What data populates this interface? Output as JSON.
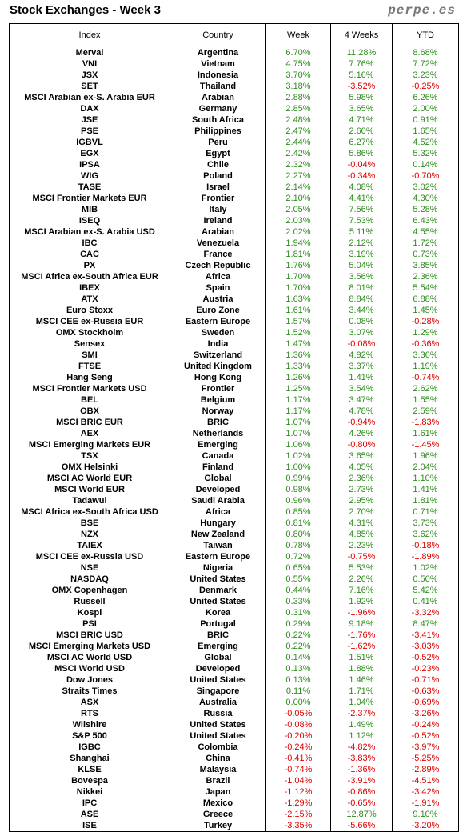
{
  "header": {
    "title": "Stock Exchanges - Week 3",
    "site": "perpe.es"
  },
  "table": {
    "columns": [
      "Index",
      "Country",
      "Week",
      "4 Weeks",
      "YTD"
    ],
    "rows": [
      [
        "Merval",
        "Argentina",
        "6.70%",
        "11.28%",
        "8.68%"
      ],
      [
        "VNI",
        "Vietnam",
        "4.75%",
        "7.76%",
        "7.72%"
      ],
      [
        "JSX",
        "Indonesia",
        "3.70%",
        "5.16%",
        "3.23%"
      ],
      [
        "SET",
        "Thailand",
        "3.18%",
        "-3.52%",
        "-0.25%"
      ],
      [
        "MSCI Arabian ex-S. Arabia EUR",
        "Arabian",
        "2.88%",
        "5.98%",
        "6.26%"
      ],
      [
        "DAX",
        "Germany",
        "2.85%",
        "3.65%",
        "2.00%"
      ],
      [
        "JSE",
        "South Africa",
        "2.48%",
        "4.71%",
        "0.91%"
      ],
      [
        "PSE",
        "Philippines",
        "2.47%",
        "2.60%",
        "1.65%"
      ],
      [
        "IGBVL",
        "Peru",
        "2.44%",
        "6.27%",
        "4.52%"
      ],
      [
        "EGX",
        "Egypt",
        "2.42%",
        "5.86%",
        "5.32%"
      ],
      [
        "IPSA",
        "Chile",
        "2.32%",
        "-0.04%",
        "0.14%"
      ],
      [
        "WIG",
        "Poland",
        "2.27%",
        "-0.34%",
        "-0.70%"
      ],
      [
        "TASE",
        "Israel",
        "2.14%",
        "4.08%",
        "3.02%"
      ],
      [
        "MSCI Frontier Markets EUR",
        "Frontier",
        "2.10%",
        "4.41%",
        "4.30%"
      ],
      [
        "MIB",
        "Italy",
        "2.05%",
        "7.56%",
        "5.28%"
      ],
      [
        "ISEQ",
        "Ireland",
        "2.03%",
        "7.53%",
        "6.43%"
      ],
      [
        "MSCI Arabian ex-S. Arabia USD",
        "Arabian",
        "2.02%",
        "5.11%",
        "4.55%"
      ],
      [
        "IBC",
        "Venezuela",
        "1.94%",
        "2.12%",
        "1.72%"
      ],
      [
        "CAC",
        "France",
        "1.81%",
        "3.19%",
        "0.73%"
      ],
      [
        "PX",
        "Czech Republic",
        "1.76%",
        "5.04%",
        "3.85%"
      ],
      [
        "MSCI Africa ex-South Africa EUR",
        "Africa",
        "1.70%",
        "3.56%",
        "2.36%"
      ],
      [
        "IBEX",
        "Spain",
        "1.70%",
        "8.01%",
        "5.54%"
      ],
      [
        "ATX",
        "Austria",
        "1.63%",
        "8.84%",
        "6.88%"
      ],
      [
        "Euro Stoxx",
        "Euro Zone",
        "1.61%",
        "3.44%",
        "1.45%"
      ],
      [
        "MSCI CEE ex-Russia EUR",
        "Eastern Europe",
        "1.57%",
        "0.08%",
        "-0.28%"
      ],
      [
        "OMX Stockholm",
        "Sweden",
        "1.52%",
        "3.07%",
        "1.29%"
      ],
      [
        "Sensex",
        "India",
        "1.47%",
        "-0.08%",
        "-0.36%"
      ],
      [
        "SMI",
        "Switzerland",
        "1.36%",
        "4.92%",
        "3.36%"
      ],
      [
        "FTSE",
        "United Kingdom",
        "1.33%",
        "3.37%",
        "1.19%"
      ],
      [
        "Hang Seng",
        "Hong Kong",
        "1.26%",
        "1.41%",
        "-0.74%"
      ],
      [
        "MSCI Frontier Markets USD",
        "Frontier",
        "1.25%",
        "3.54%",
        "2.62%"
      ],
      [
        "BEL",
        "Belgium",
        "1.17%",
        "3.47%",
        "1.55%"
      ],
      [
        "OBX",
        "Norway",
        "1.17%",
        "4.78%",
        "2.59%"
      ],
      [
        "MSCI BRIC EUR",
        "BRIC",
        "1.07%",
        "-0.94%",
        "-1.83%"
      ],
      [
        "AEX",
        "Netherlands",
        "1.07%",
        "4.26%",
        "1.61%"
      ],
      [
        "MSCI Emerging Markets EUR",
        "Emerging",
        "1.06%",
        "-0.80%",
        "-1.45%"
      ],
      [
        "TSX",
        "Canada",
        "1.02%",
        "3.65%",
        "1.96%"
      ],
      [
        "OMX Helsinki",
        "Finland",
        "1.00%",
        "4.05%",
        "2.04%"
      ],
      [
        "MSCI AC World EUR",
        "Global",
        "0.99%",
        "2.36%",
        "1.10%"
      ],
      [
        "MSCI World EUR",
        "Developed",
        "0.98%",
        "2.73%",
        "1.41%"
      ],
      [
        "Tadawul",
        "Saudi Arabia",
        "0.96%",
        "2.95%",
        "1.81%"
      ],
      [
        "MSCI Africa ex-South Africa USD",
        "Africa",
        "0.85%",
        "2.70%",
        "0.71%"
      ],
      [
        "BSE",
        "Hungary",
        "0.81%",
        "4.31%",
        "3.73%"
      ],
      [
        "NZX",
        "New Zealand",
        "0.80%",
        "4.85%",
        "3.62%"
      ],
      [
        "TAIEX",
        "Taiwan",
        "0.78%",
        "2.23%",
        "-0.18%"
      ],
      [
        "MSCI CEE ex-Russia USD",
        "Eastern Europe",
        "0.72%",
        "-0.75%",
        "-1.89%"
      ],
      [
        "NSE",
        "Nigeria",
        "0.65%",
        "5.53%",
        "1.02%"
      ],
      [
        "NASDAQ",
        "United States",
        "0.55%",
        "2.26%",
        "0.50%"
      ],
      [
        "OMX Copenhagen",
        "Denmark",
        "0.44%",
        "7.16%",
        "5.42%"
      ],
      [
        "Russell",
        "United States",
        "0.33%",
        "1.92%",
        "0.41%"
      ],
      [
        "Kospi",
        "Korea",
        "0.31%",
        "-1.96%",
        "-3.32%"
      ],
      [
        "PSI",
        "Portugal",
        "0.29%",
        "9.18%",
        "8.47%"
      ],
      [
        "MSCI BRIC USD",
        "BRIC",
        "0.22%",
        "-1.76%",
        "-3.41%"
      ],
      [
        "MSCI Emerging Markets USD",
        "Emerging",
        "0.22%",
        "-1.62%",
        "-3.03%"
      ],
      [
        "MSCI AC World USD",
        "Global",
        "0.14%",
        "1.51%",
        "-0.52%"
      ],
      [
        "MSCI World USD",
        "Developed",
        "0.13%",
        "1.88%",
        "-0.23%"
      ],
      [
        "Dow Jones",
        "United States",
        "0.13%",
        "1.46%",
        "-0.71%"
      ],
      [
        "Straits Times",
        "Singapore",
        "0.11%",
        "1.71%",
        "-0.63%"
      ],
      [
        "ASX",
        "Australia",
        "0.00%",
        "1.04%",
        "-0.69%"
      ],
      [
        "RTS",
        "Russia",
        "-0.05%",
        "-2.37%",
        "-3.26%"
      ],
      [
        "Wilshire",
        "United States",
        "-0.08%",
        "1.49%",
        "-0.24%"
      ],
      [
        "S&P 500",
        "United States",
        "-0.20%",
        "1.12%",
        "-0.52%"
      ],
      [
        "IGBC",
        "Colombia",
        "-0.24%",
        "-4.82%",
        "-3.97%"
      ],
      [
        "Shanghai",
        "China",
        "-0.41%",
        "-3.83%",
        "-5.25%"
      ],
      [
        "KLSE",
        "Malaysia",
        "-0.74%",
        "-1.36%",
        "-2.89%"
      ],
      [
        "Bovespa",
        "Brazil",
        "-1.04%",
        "-3.91%",
        "-4.51%"
      ],
      [
        "Nikkei",
        "Japan",
        "-1.12%",
        "-0.86%",
        "-3.42%"
      ],
      [
        "IPC",
        "Mexico",
        "-1.29%",
        "-0.65%",
        "-1.91%"
      ],
      [
        "ASE",
        "Greece",
        "-2.15%",
        "12.87%",
        "9.10%"
      ],
      [
        "ISE",
        "Turkey",
        "-3.35%",
        "-5.66%",
        "-3.20%"
      ]
    ]
  }
}
